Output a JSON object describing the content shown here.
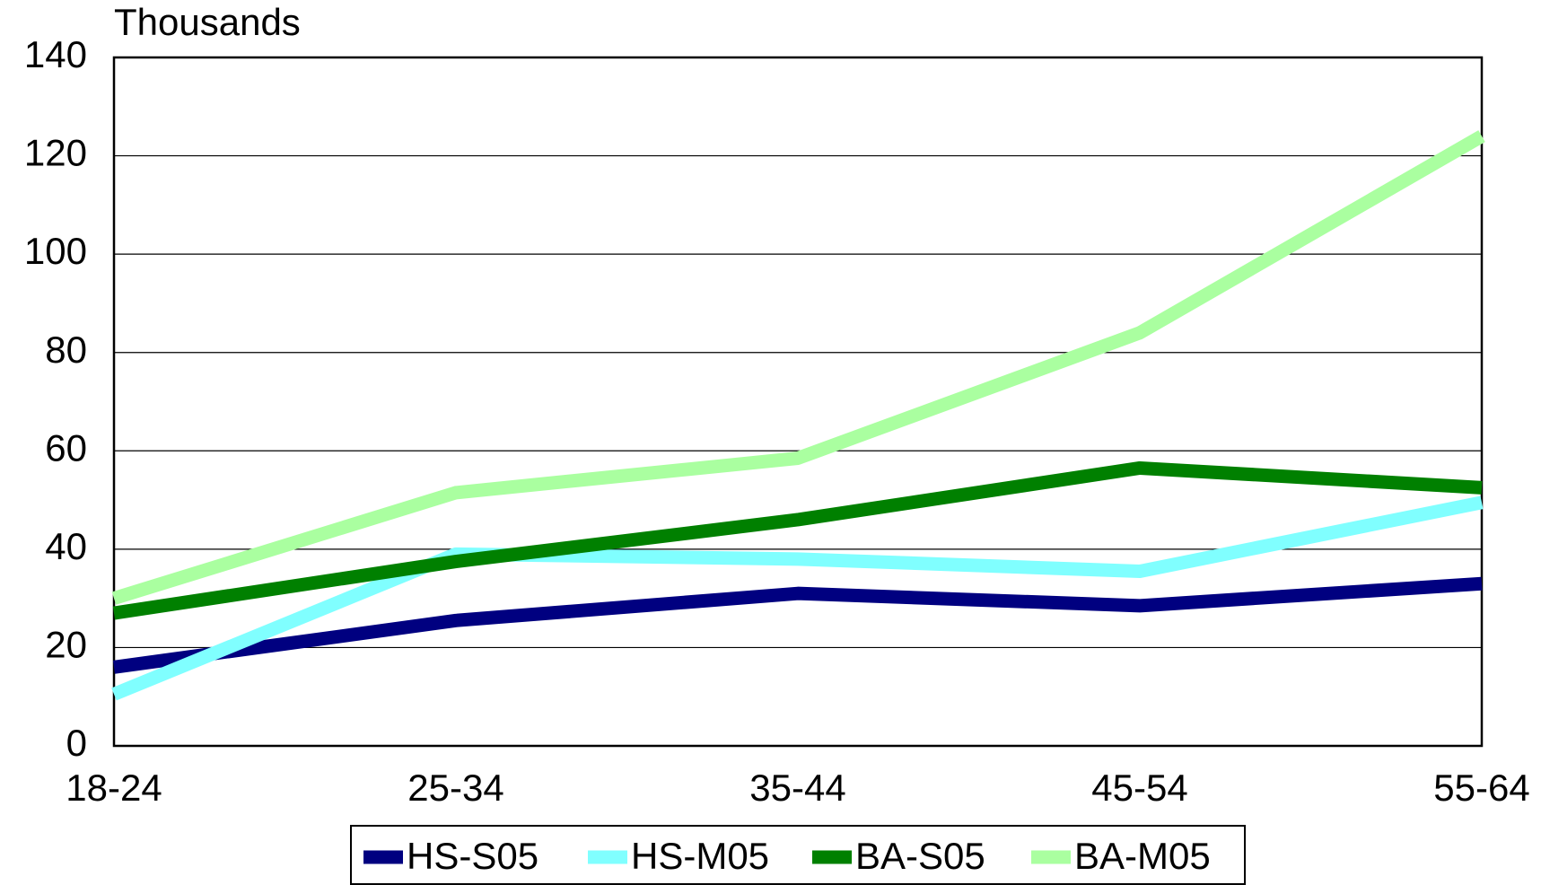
{
  "chart_data": {
    "type": "line",
    "y_label": "Thousands",
    "categories": [
      "18-24",
      "25-34",
      "35-44",
      "45-54",
      "55-64"
    ],
    "series": [
      {
        "name": "HS-S05",
        "color": "#000080",
        "values": [
          16,
          25.5,
          31,
          28.5,
          33
        ]
      },
      {
        "name": "HS-M05",
        "color": "#80ffff",
        "values": [
          10.5,
          39,
          38,
          35.5,
          49.5
        ]
      },
      {
        "name": "BA-S05",
        "color": "#008000",
        "values": [
          27,
          37.5,
          46,
          56.5,
          52.5
        ]
      },
      {
        "name": "BA-M05",
        "color": "#aaffa0",
        "values": [
          30,
          51.5,
          58.5,
          84,
          124
        ]
      }
    ],
    "ylim": [
      0,
      140
    ],
    "yticks": [
      0,
      20,
      40,
      60,
      80,
      100,
      120,
      140
    ],
    "grid": true
  }
}
